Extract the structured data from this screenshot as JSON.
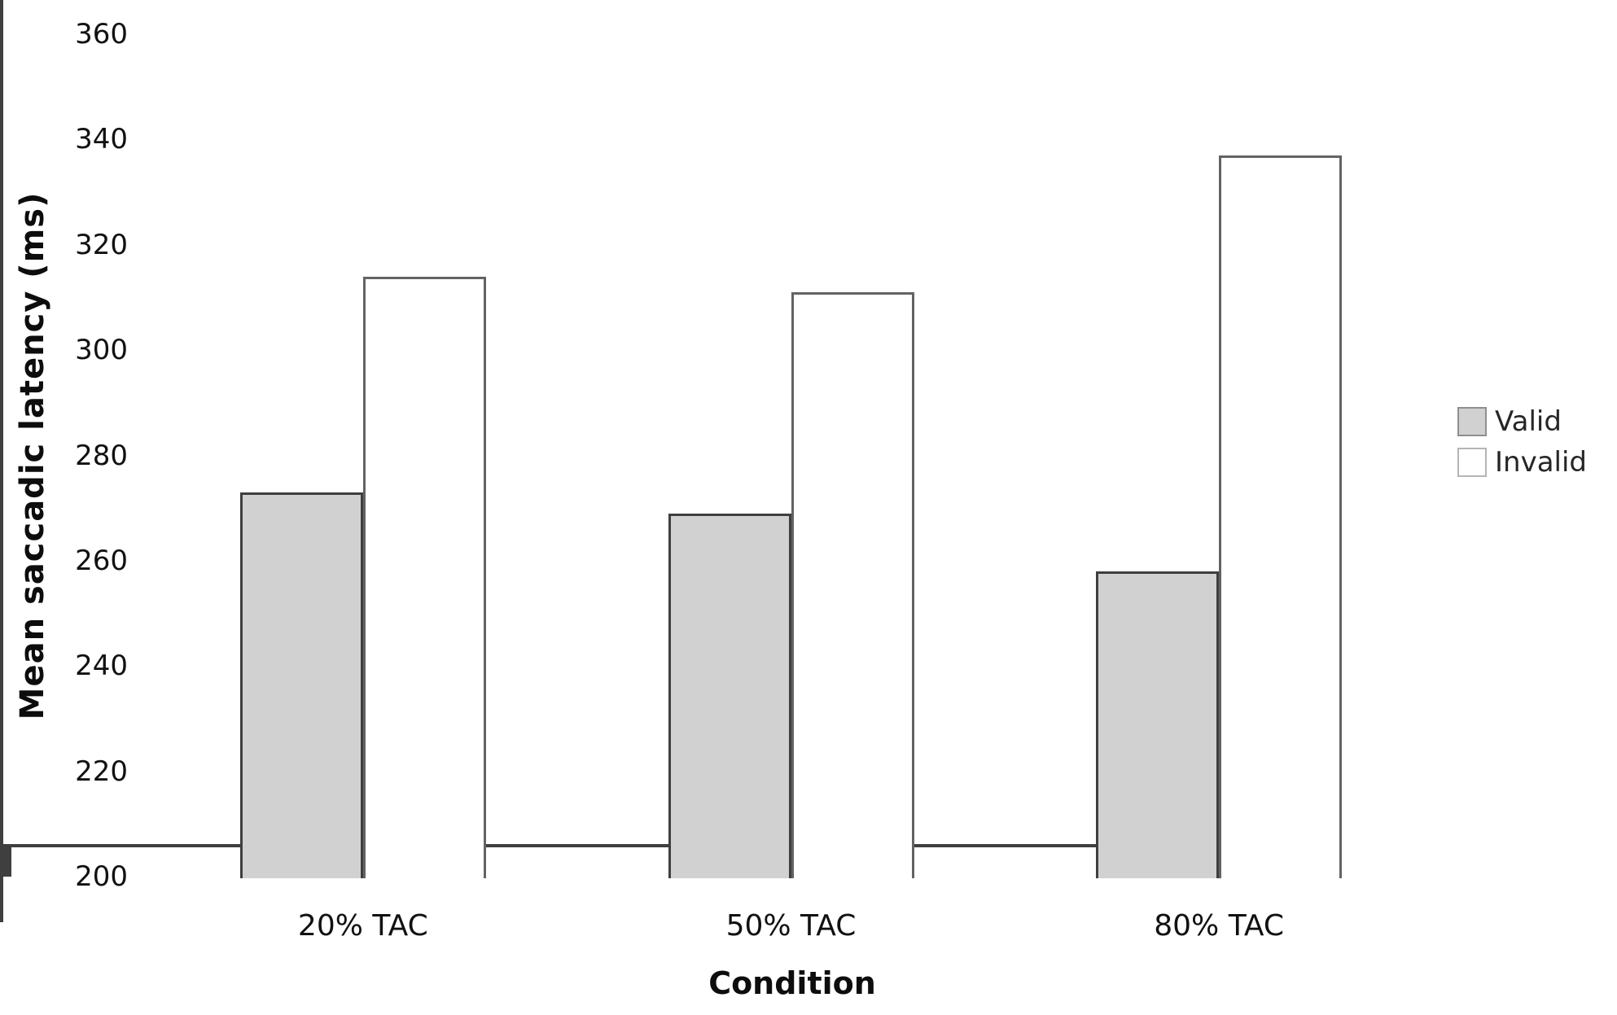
{
  "chart_data": {
    "type": "bar",
    "title": "",
    "categories": [
      "20% TAC",
      "50% TAC",
      "80% TAC"
    ],
    "series": [
      {
        "name": "Valid",
        "values": [
          273,
          269,
          258
        ],
        "fill": "#d1d1d1",
        "border": "#3f3f3f"
      },
      {
        "name": "Invalid",
        "values": [
          314,
          311,
          337
        ],
        "fill": "#ffffff",
        "border": "#636363"
      }
    ],
    "xlabel": "Condition",
    "ylabel": "Mean saccadic latency (ms)",
    "ylim": [
      200,
      360
    ],
    "ytick_step": 20,
    "yticks": [
      200,
      220,
      240,
      260,
      280,
      300,
      320,
      340,
      360
    ],
    "grid": false,
    "legend_position": "right",
    "legend_swatch_borders": {
      "Valid": "#8f8f8f",
      "Invalid": "#b5b5b5"
    },
    "axis_color": "#3f3f3f",
    "text_color": "#111111",
    "background": "#ffffff"
  }
}
